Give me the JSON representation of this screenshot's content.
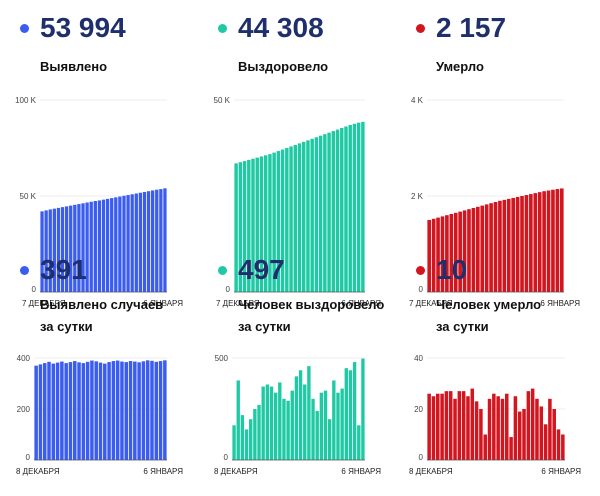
{
  "panels": [
    {
      "value": "53 994",
      "label_lines": [
        "Выявлено"
      ],
      "color": "#3b5cf0",
      "chart_data": {
        "type": "bar",
        "x_start": "7 ДЕКАБРЯ",
        "x_end": "6 ЯНВАРЯ",
        "ylim": [
          0,
          100000
        ],
        "yticks": [
          "0",
          "50 K",
          "100 K"
        ],
        "values": [
          42000,
          42500,
          43000,
          43400,
          43800,
          44200,
          44600,
          45000,
          45400,
          45800,
          46200,
          46600,
          47000,
          47400,
          47700,
          48100,
          48500,
          48900,
          49300,
          49700,
          50100,
          50500,
          50900,
          51300,
          51700,
          52100,
          52500,
          52900,
          53300,
          53600,
          53994
        ]
      }
    },
    {
      "value": "44 308",
      "label_lines": [
        "Выздоровело"
      ],
      "color": "#1ec9a4",
      "chart_data": {
        "type": "bar",
        "x_start": "7 ДЕКАБРЯ",
        "x_end": "6 ЯНВАРЯ",
        "ylim": [
          0,
          50000
        ],
        "yticks": [
          "0",
          "50 K"
        ],
        "values": [
          33500,
          33800,
          34100,
          34400,
          34700,
          35000,
          35300,
          35600,
          35900,
          36300,
          36700,
          37100,
          37500,
          37900,
          38300,
          38700,
          39100,
          39500,
          39900,
          40300,
          40700,
          41100,
          41500,
          41900,
          42300,
          42700,
          43100,
          43500,
          43800,
          44100,
          44308
        ]
      }
    },
    {
      "value": "2 157",
      "label_lines": [
        "Умерло"
      ],
      "color": "#d2151e",
      "chart_data": {
        "type": "bar",
        "x_start": "7 ДЕКАБРЯ",
        "x_end": "6 ЯНВАРЯ",
        "ylim": [
          0,
          4000
        ],
        "yticks": [
          "0",
          "2 K",
          "4 K"
        ],
        "values": [
          1500,
          1525,
          1550,
          1575,
          1600,
          1625,
          1650,
          1675,
          1700,
          1725,
          1750,
          1775,
          1800,
          1825,
          1850,
          1875,
          1900,
          1920,
          1940,
          1960,
          1980,
          2000,
          2020,
          2040,
          2060,
          2080,
          2100,
          2115,
          2130,
          2145,
          2157
        ]
      }
    },
    {
      "value": "391",
      "label_lines": [
        "Выявлено случаев",
        "за сутки"
      ],
      "color": "#3b5cf0",
      "chart_data": {
        "type": "bar",
        "x_start": "8 ДЕКАБРЯ",
        "x_end": "6 ЯНВАРЯ",
        "ylim": [
          0,
          400
        ],
        "yticks": [
          "0",
          "200",
          "400"
        ],
        "values": [
          370,
          375,
          380,
          385,
          378,
          382,
          386,
          380,
          384,
          388,
          383,
          380,
          385,
          390,
          387,
          382,
          378,
          384,
          388,
          390,
          386,
          384,
          388,
          386,
          383,
          387,
          391,
          389,
          385,
          388,
          391
        ]
      }
    },
    {
      "value": "497",
      "label_lines": [
        "Человек выздоровело",
        "за сутки"
      ],
      "color": "#1ec9a4",
      "chart_data": {
        "type": "bar",
        "x_start": "8 ДЕКАБРЯ",
        "x_end": "6 ЯНВАРЯ",
        "ylim": [
          0,
          500
        ],
        "yticks": [
          "0",
          "500"
        ],
        "values": [
          170,
          390,
          220,
          150,
          200,
          250,
          270,
          360,
          370,
          360,
          330,
          380,
          300,
          290,
          340,
          410,
          440,
          370,
          460,
          300,
          240,
          330,
          340,
          200,
          390,
          330,
          350,
          450,
          440,
          480,
          170,
          497
        ]
      }
    },
    {
      "value": "10",
      "label_lines": [
        "Человек умерло",
        "за сутки"
      ],
      "color": "#d2151e",
      "chart_data": {
        "type": "bar",
        "x_start": "8 ДЕКАБРЯ",
        "x_end": "6 ЯНВАРЯ",
        "ylim": [
          0,
          40
        ],
        "yticks": [
          "0",
          "20",
          "40"
        ],
        "values": [
          26,
          25,
          26,
          26,
          27,
          27,
          24,
          27,
          27,
          25,
          28,
          23,
          20,
          10,
          24,
          26,
          25,
          24,
          26,
          9,
          25,
          19,
          20,
          27,
          28,
          24,
          21,
          14,
          24,
          20,
          12,
          10
        ]
      }
    }
  ]
}
